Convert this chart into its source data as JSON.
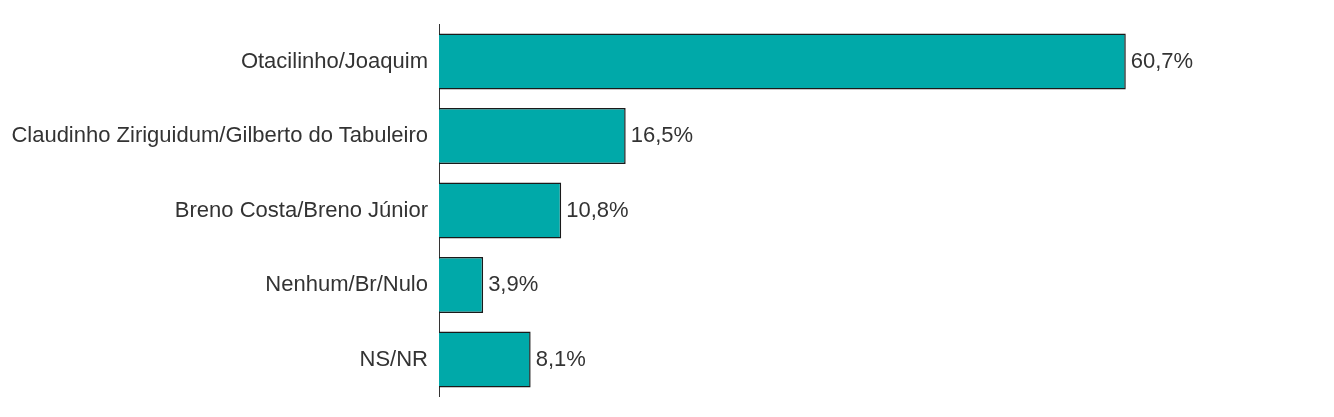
{
  "chart_data": {
    "type": "bar",
    "orientation": "horizontal",
    "categories": [
      "Otacilinho/Joaquim",
      "Claudinho Ziriguidum/Gilberto do Tabuleiro",
      "Breno Costa/Breno Júnior",
      "Nenhum/Br/Nulo",
      "NS/NR"
    ],
    "values": [
      60.7,
      16.5,
      10.8,
      3.9,
      8.1
    ],
    "value_labels": [
      "60,7%",
      "16,5%",
      "10,8%",
      "3,9%",
      "8,1%"
    ],
    "color": "#00a9a9",
    "tick_labels": "y",
    "legend": false
  }
}
